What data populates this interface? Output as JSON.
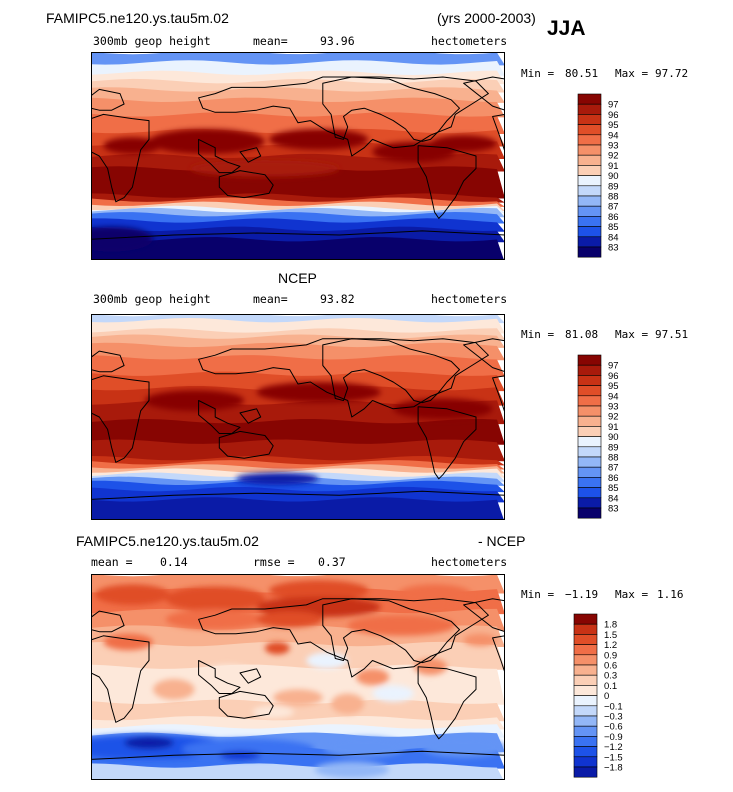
{
  "header": {
    "model_run": "FAMIPC5.ne120.ys.tau5m.02",
    "years": "(yrs 2000-2003)",
    "season": "JJA"
  },
  "colors": {
    "scale": [
      "#08006b",
      "#0a1ba7",
      "#1034d0",
      "#1d52e8",
      "#3a72f2",
      "#6494f5",
      "#93b7f7",
      "#c3d8fa",
      "#eaf3fe",
      "#fde8da",
      "#fbcfb6",
      "#f8b18f",
      "#f59069",
      "#f06e47",
      "#e04e28",
      "#c83215",
      "#a81a0b",
      "#870502"
    ]
  },
  "chart_data": [
    {
      "type": "heatmap",
      "title": "FAMIPC5.ne120.ys.tau5m.02",
      "field": "300mb geop height",
      "mean_label": "mean=",
      "mean_value": "93.96",
      "units": "hectometers",
      "min_label": "Min =",
      "min_value": "80.51",
      "max_label": "Max =",
      "max_value": "97.72",
      "levels": [
        "97",
        "96",
        "95",
        "94",
        "93",
        "92",
        "91",
        "90",
        "89",
        "88",
        "87",
        "86",
        "85",
        "84",
        "83"
      ]
    },
    {
      "type": "heatmap",
      "title": "NCEP",
      "field": "300mb geop height",
      "mean_label": "mean=",
      "mean_value": "93.82",
      "units": "hectometers",
      "min_label": "Min =",
      "min_value": "81.08",
      "max_label": "Max =",
      "max_value": "97.51",
      "levels": [
        "97",
        "96",
        "95",
        "94",
        "93",
        "92",
        "91",
        "90",
        "89",
        "88",
        "87",
        "86",
        "85",
        "84",
        "83"
      ]
    },
    {
      "type": "heatmap",
      "title": "FAMIPC5.ne120.ys.tau5m.02",
      "title_suffix": "- NCEP",
      "mean_label": "mean =",
      "mean_value": "0.14",
      "rmse_label": "rmse =",
      "rmse_value": "0.37",
      "units": "hectometers",
      "min_label": "Min =",
      "min_value": "−1.19",
      "max_label": "Max =",
      "max_value": "1.16",
      "levels": [
        "1.8",
        "1.5",
        "1.2",
        "0.9",
        "0.6",
        "0.3",
        "0.1",
        "0",
        "−0.1",
        "−0.3",
        "−0.6",
        "−0.9",
        "−1.2",
        "−1.5",
        "−1.8"
      ]
    }
  ]
}
